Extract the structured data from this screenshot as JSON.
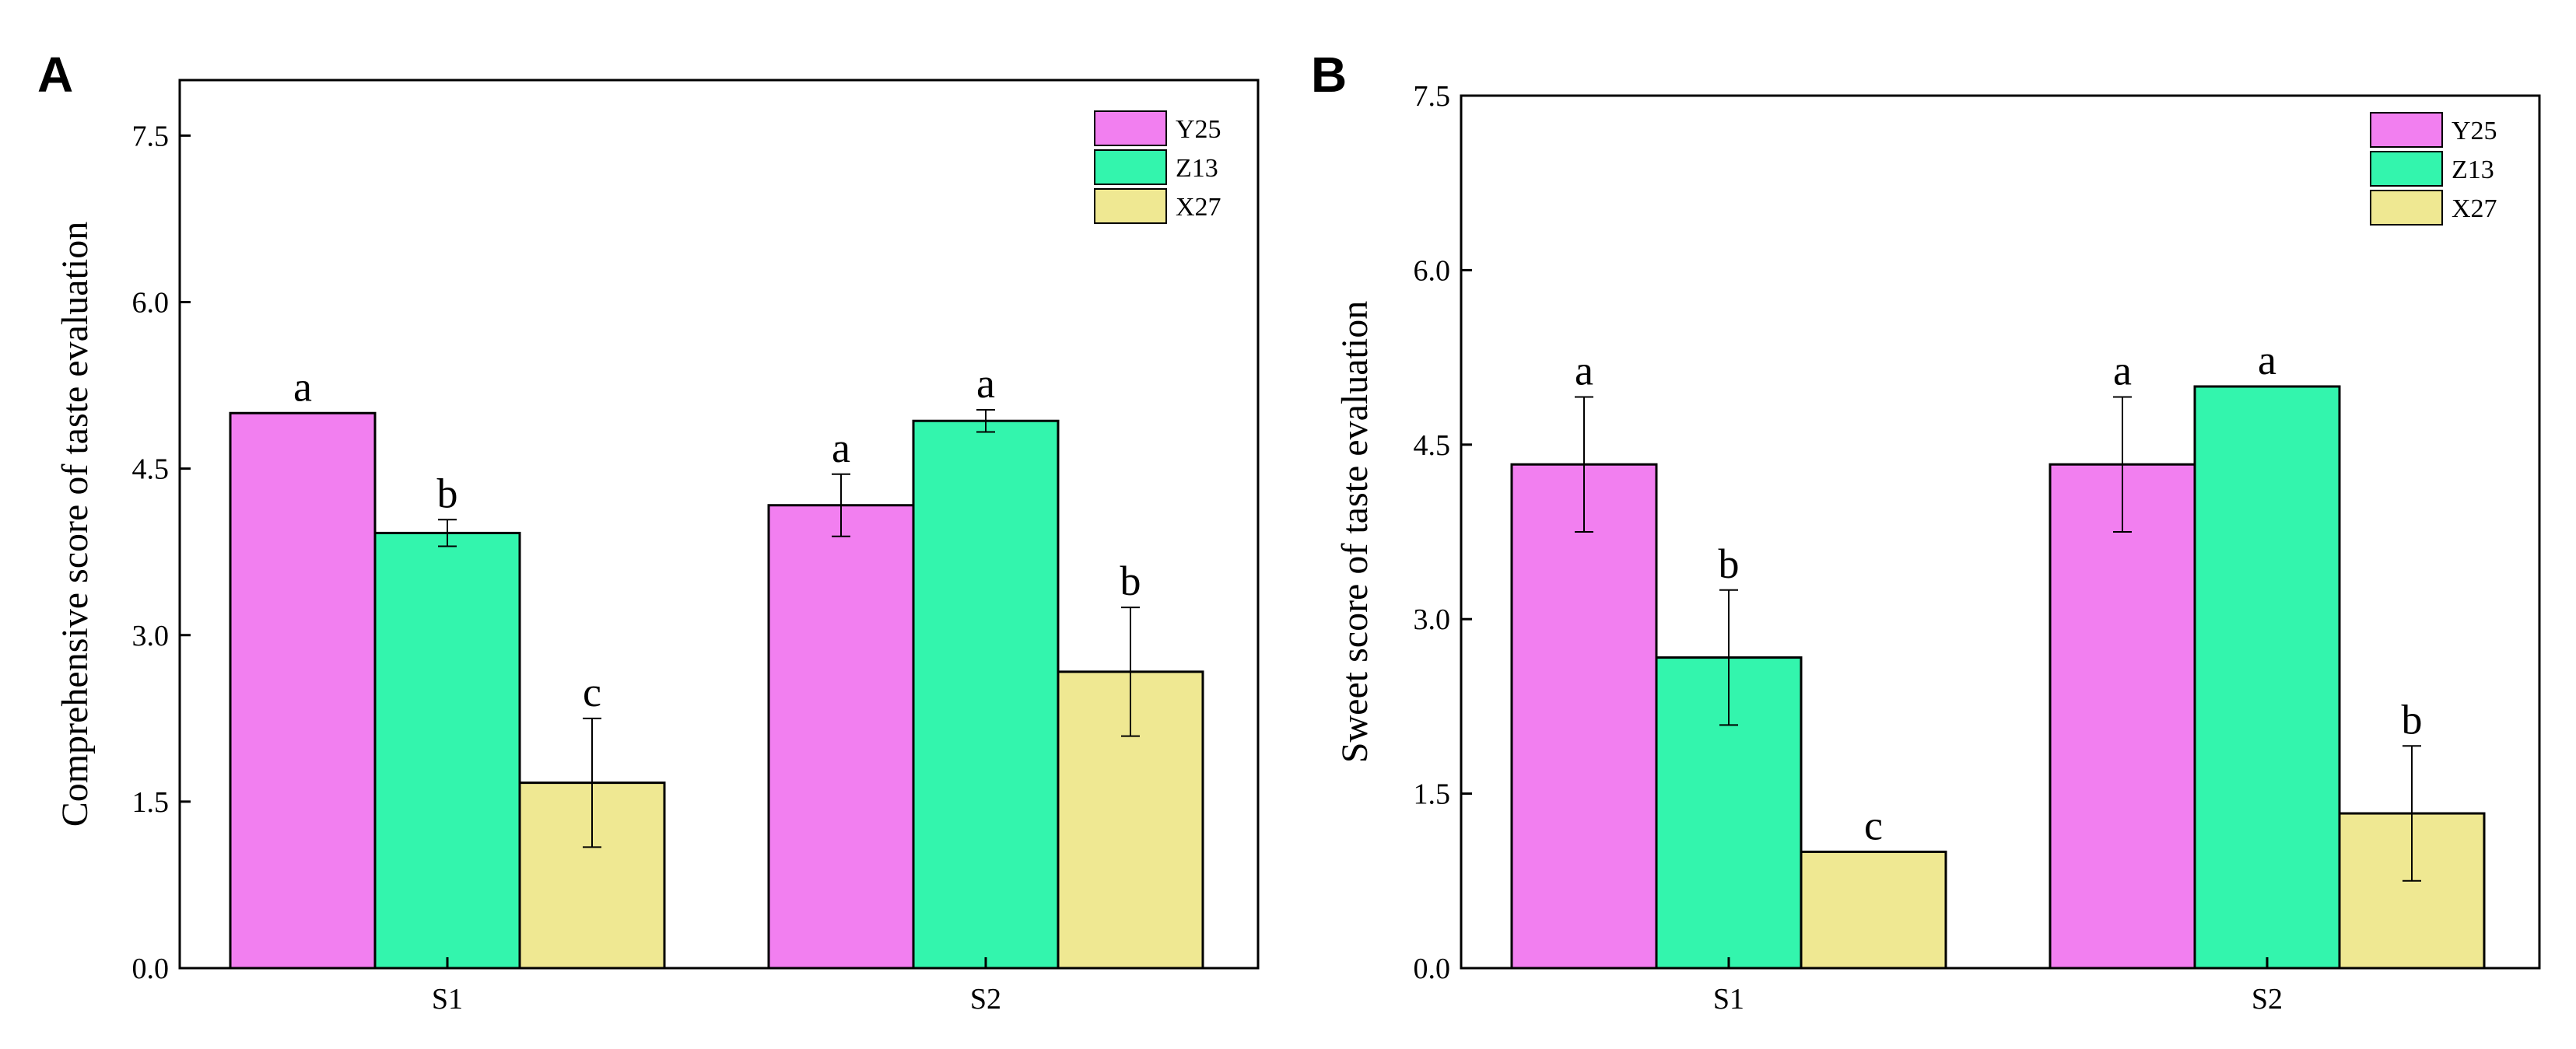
{
  "chart_data": [
    {
      "panel": "A",
      "type": "bar",
      "title": "",
      "xlabel": "",
      "ylabel": "Comprehensive score of taste evaluation",
      "ylim": [
        0,
        8
      ],
      "yticks": [
        0.0,
        1.5,
        3.0,
        4.5,
        6.0,
        7.5
      ],
      "ytick_labels": [
        "0.0",
        "1.5",
        "3.0",
        "4.5",
        "6.0",
        "7.5"
      ],
      "categories": [
        "S1",
        "S2"
      ],
      "legend_position": "top-right",
      "series": [
        {
          "name": "Y25",
          "color": "#f27ff0",
          "values": [
            5.0,
            4.17
          ],
          "errors": [
            0,
            0.28
          ],
          "letters": [
            "a",
            "a"
          ]
        },
        {
          "name": "Z13",
          "color": "#33f5ad",
          "values": [
            3.92,
            4.93
          ],
          "errors": [
            0.12,
            0.1
          ],
          "letters": [
            "b",
            "a"
          ]
        },
        {
          "name": "X27",
          "color": "#efe892",
          "values": [
            1.67,
            2.67
          ],
          "errors": [
            0.58,
            0.58
          ],
          "letters": [
            "c",
            "b"
          ]
        }
      ]
    },
    {
      "panel": "B",
      "type": "bar",
      "title": "",
      "xlabel": "",
      "ylabel": "Sweet score of taste evaluation",
      "ylim": [
        0,
        7.5
      ],
      "yticks": [
        0.0,
        1.5,
        3.0,
        4.5,
        6.0,
        7.5
      ],
      "ytick_labels": [
        "0.0",
        "1.5",
        "3.0",
        "4.5",
        "6.0",
        "7.5"
      ],
      "categories": [
        "S1",
        "S2"
      ],
      "legend_position": "top-right",
      "series": [
        {
          "name": "Y25",
          "color": "#f27ff0",
          "values": [
            4.33,
            4.33
          ],
          "errors": [
            0.58,
            0.58
          ],
          "letters": [
            "a",
            "a"
          ]
        },
        {
          "name": "Z13",
          "color": "#33f5ad",
          "values": [
            2.67,
            5.0
          ],
          "errors": [
            0.58,
            0
          ],
          "letters": [
            "b",
            "a"
          ]
        },
        {
          "name": "X27",
          "color": "#efe892",
          "values": [
            1.0,
            1.33
          ],
          "errors": [
            0,
            0.58
          ],
          "letters": [
            "c",
            "b"
          ]
        }
      ]
    }
  ]
}
